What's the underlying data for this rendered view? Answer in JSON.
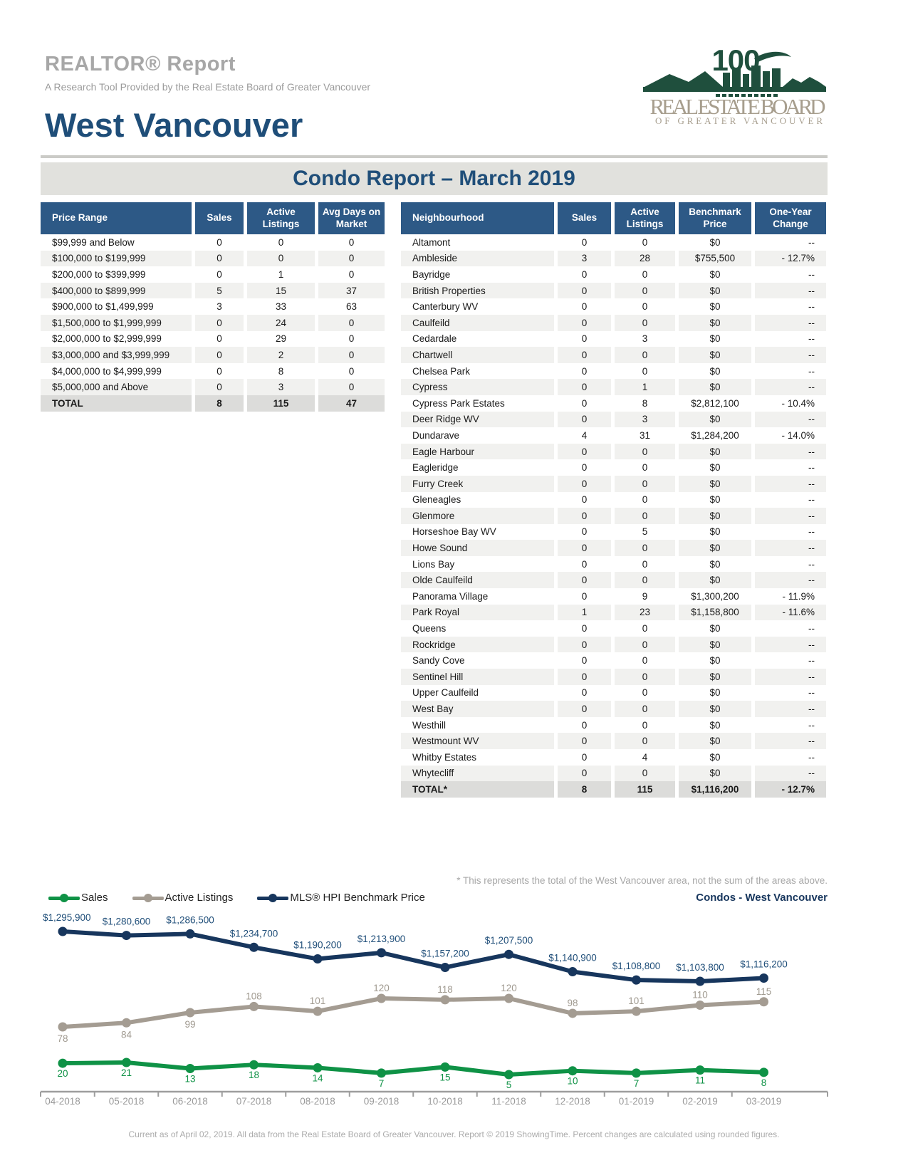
{
  "header": {
    "report_title": "REALTOR® Report",
    "report_subtitle": "A Research Tool Provided by the Real Estate Board of Greater Vancouver",
    "area_title": "West Vancouver",
    "logo": {
      "years": "100",
      "line1": "REAL ESTATE BOARD",
      "line2": "OF GREATER VANCOUVER"
    }
  },
  "banner": {
    "title": "Condo Report – March 2019"
  },
  "colors": {
    "navy": "#1f4e79",
    "table_header_blue": "#2d5986",
    "banner_bg": "#e1e1dd",
    "logo_green": "#1f4f3d",
    "logo_tan": "#a79e8e"
  },
  "price_table": {
    "headers": [
      "Price Range",
      "Sales",
      "Active Listings",
      "Avg Days on Market"
    ],
    "rows": [
      {
        "range": "$99,999 and Below",
        "sales": "0",
        "active": "0",
        "avg_days": "0"
      },
      {
        "range": "$100,000 to $199,999",
        "sales": "0",
        "active": "0",
        "avg_days": "0"
      },
      {
        "range": "$200,000 to $399,999",
        "sales": "0",
        "active": "1",
        "avg_days": "0"
      },
      {
        "range": "$400,000 to $899,999",
        "sales": "5",
        "active": "15",
        "avg_days": "37"
      },
      {
        "range": "$900,000 to $1,499,999",
        "sales": "3",
        "active": "33",
        "avg_days": "63"
      },
      {
        "range": "$1,500,000 to $1,999,999",
        "sales": "0",
        "active": "24",
        "avg_days": "0"
      },
      {
        "range": "$2,000,000 to $2,999,999",
        "sales": "0",
        "active": "29",
        "avg_days": "0"
      },
      {
        "range": "$3,000,000 and $3,999,999",
        "sales": "0",
        "active": "2",
        "avg_days": "0"
      },
      {
        "range": "$4,000,000 to $4,999,999",
        "sales": "0",
        "active": "8",
        "avg_days": "0"
      },
      {
        "range": "$5,000,000 and Above",
        "sales": "0",
        "active": "3",
        "avg_days": "0"
      }
    ],
    "total": {
      "label": "TOTAL",
      "sales": "8",
      "active": "115",
      "avg_days": "47"
    }
  },
  "neighbourhood_table": {
    "headers": [
      "Neighbourhood",
      "Sales",
      "Active Listings",
      "Benchmark Price",
      "One-Year Change"
    ],
    "rows": [
      {
        "name": "Altamont",
        "sales": "0",
        "active": "0",
        "price": "$0",
        "change": "--"
      },
      {
        "name": "Ambleside",
        "sales": "3",
        "active": "28",
        "price": "$755,500",
        "change": "- 12.7%"
      },
      {
        "name": "Bayridge",
        "sales": "0",
        "active": "0",
        "price": "$0",
        "change": "--"
      },
      {
        "name": "British Properties",
        "sales": "0",
        "active": "0",
        "price": "$0",
        "change": "--"
      },
      {
        "name": "Canterbury WV",
        "sales": "0",
        "active": "0",
        "price": "$0",
        "change": "--"
      },
      {
        "name": "Caulfeild",
        "sales": "0",
        "active": "0",
        "price": "$0",
        "change": "--"
      },
      {
        "name": "Cedardale",
        "sales": "0",
        "active": "3",
        "price": "$0",
        "change": "--"
      },
      {
        "name": "Chartwell",
        "sales": "0",
        "active": "0",
        "price": "$0",
        "change": "--"
      },
      {
        "name": "Chelsea Park",
        "sales": "0",
        "active": "0",
        "price": "$0",
        "change": "--"
      },
      {
        "name": "Cypress",
        "sales": "0",
        "active": "1",
        "price": "$0",
        "change": "--"
      },
      {
        "name": "Cypress Park Estates",
        "sales": "0",
        "active": "8",
        "price": "$2,812,100",
        "change": "- 10.4%"
      },
      {
        "name": "Deer Ridge WV",
        "sales": "0",
        "active": "3",
        "price": "$0",
        "change": "--"
      },
      {
        "name": "Dundarave",
        "sales": "4",
        "active": "31",
        "price": "$1,284,200",
        "change": "- 14.0%"
      },
      {
        "name": "Eagle Harbour",
        "sales": "0",
        "active": "0",
        "price": "$0",
        "change": "--"
      },
      {
        "name": "Eagleridge",
        "sales": "0",
        "active": "0",
        "price": "$0",
        "change": "--"
      },
      {
        "name": "Furry Creek",
        "sales": "0",
        "active": "0",
        "price": "$0",
        "change": "--"
      },
      {
        "name": "Gleneagles",
        "sales": "0",
        "active": "0",
        "price": "$0",
        "change": "--"
      },
      {
        "name": "Glenmore",
        "sales": "0",
        "active": "0",
        "price": "$0",
        "change": "--"
      },
      {
        "name": "Horseshoe Bay WV",
        "sales": "0",
        "active": "5",
        "price": "$0",
        "change": "--"
      },
      {
        "name": "Howe Sound",
        "sales": "0",
        "active": "0",
        "price": "$0",
        "change": "--"
      },
      {
        "name": "Lions Bay",
        "sales": "0",
        "active": "0",
        "price": "$0",
        "change": "--"
      },
      {
        "name": "Olde Caulfeild",
        "sales": "0",
        "active": "0",
        "price": "$0",
        "change": "--"
      },
      {
        "name": "Panorama Village",
        "sales": "0",
        "active": "9",
        "price": "$1,300,200",
        "change": "- 11.9%"
      },
      {
        "name": "Park Royal",
        "sales": "1",
        "active": "23",
        "price": "$1,158,800",
        "change": "- 11.6%"
      },
      {
        "name": "Queens",
        "sales": "0",
        "active": "0",
        "price": "$0",
        "change": "--"
      },
      {
        "name": "Rockridge",
        "sales": "0",
        "active": "0",
        "price": "$0",
        "change": "--"
      },
      {
        "name": "Sandy Cove",
        "sales": "0",
        "active": "0",
        "price": "$0",
        "change": "--"
      },
      {
        "name": "Sentinel Hill",
        "sales": "0",
        "active": "0",
        "price": "$0",
        "change": "--"
      },
      {
        "name": "Upper Caulfeild",
        "sales": "0",
        "active": "0",
        "price": "$0",
        "change": "--"
      },
      {
        "name": "West Bay",
        "sales": "0",
        "active": "0",
        "price": "$0",
        "change": "--"
      },
      {
        "name": "Westhill",
        "sales": "0",
        "active": "0",
        "price": "$0",
        "change": "--"
      },
      {
        "name": "Westmount WV",
        "sales": "0",
        "active": "0",
        "price": "$0",
        "change": "--"
      },
      {
        "name": "Whitby Estates",
        "sales": "0",
        "active": "4",
        "price": "$0",
        "change": "--"
      },
      {
        "name": "Whytecliff",
        "sales": "0",
        "active": "0",
        "price": "$0",
        "change": "--"
      }
    ],
    "total": {
      "label": "TOTAL*",
      "sales": "8",
      "active": "115",
      "price": "$1,116,200",
      "change": "- 12.7%"
    }
  },
  "chart": {
    "footnote": "* This represents the total of the West Vancouver area, not the sum of the areas above.",
    "title": "Condos - West Vancouver"
  },
  "chart_data": {
    "type": "line",
    "x": [
      "04-2018",
      "05-2018",
      "06-2018",
      "07-2018",
      "08-2018",
      "09-2018",
      "10-2018",
      "11-2018",
      "12-2018",
      "01-2019",
      "02-2019",
      "03-2019"
    ],
    "series": [
      {
        "name": "Sales",
        "color": "#0f9246",
        "values": [
          20,
          21,
          13,
          18,
          14,
          7,
          15,
          5,
          10,
          7,
          11,
          8
        ]
      },
      {
        "name": "Active Listings",
        "color": "#a49c92",
        "values": [
          78,
          84,
          99,
          108,
          101,
          120,
          118,
          120,
          98,
          101,
          110,
          115
        ]
      },
      {
        "name": "MLS® HPI Benchmark Price",
        "color": "#17365d",
        "values": [
          1295900,
          1280600,
          1286500,
          1234700,
          1190200,
          1213900,
          1157200,
          1207500,
          1140900,
          1108800,
          1103800,
          1116200
        ],
        "labels": [
          "$1,295,900",
          "$1,280,600",
          "$1,286,500",
          "$1,234,700",
          "$1,190,200",
          "$1,213,900",
          "$1,157,200",
          "$1,207,500",
          "$1,140,900",
          "$1,108,800",
          "$1,103,800",
          "$1,116,200"
        ]
      }
    ],
    "legend_position": "top-left",
    "grid": false,
    "label_color_benchmark": "#1f4e79",
    "label_color_active": "#a09a90",
    "label_color_sales": "#0f9246",
    "axis_color": "#9e9e9e",
    "tick_label_color": "#9a9a9a"
  },
  "footer": {
    "text": "Current as of April 02, 2019. All data from the Real Estate Board of Greater Vancouver. Report © 2019 ShowingTime. Percent changes are calculated using rounded figures."
  }
}
